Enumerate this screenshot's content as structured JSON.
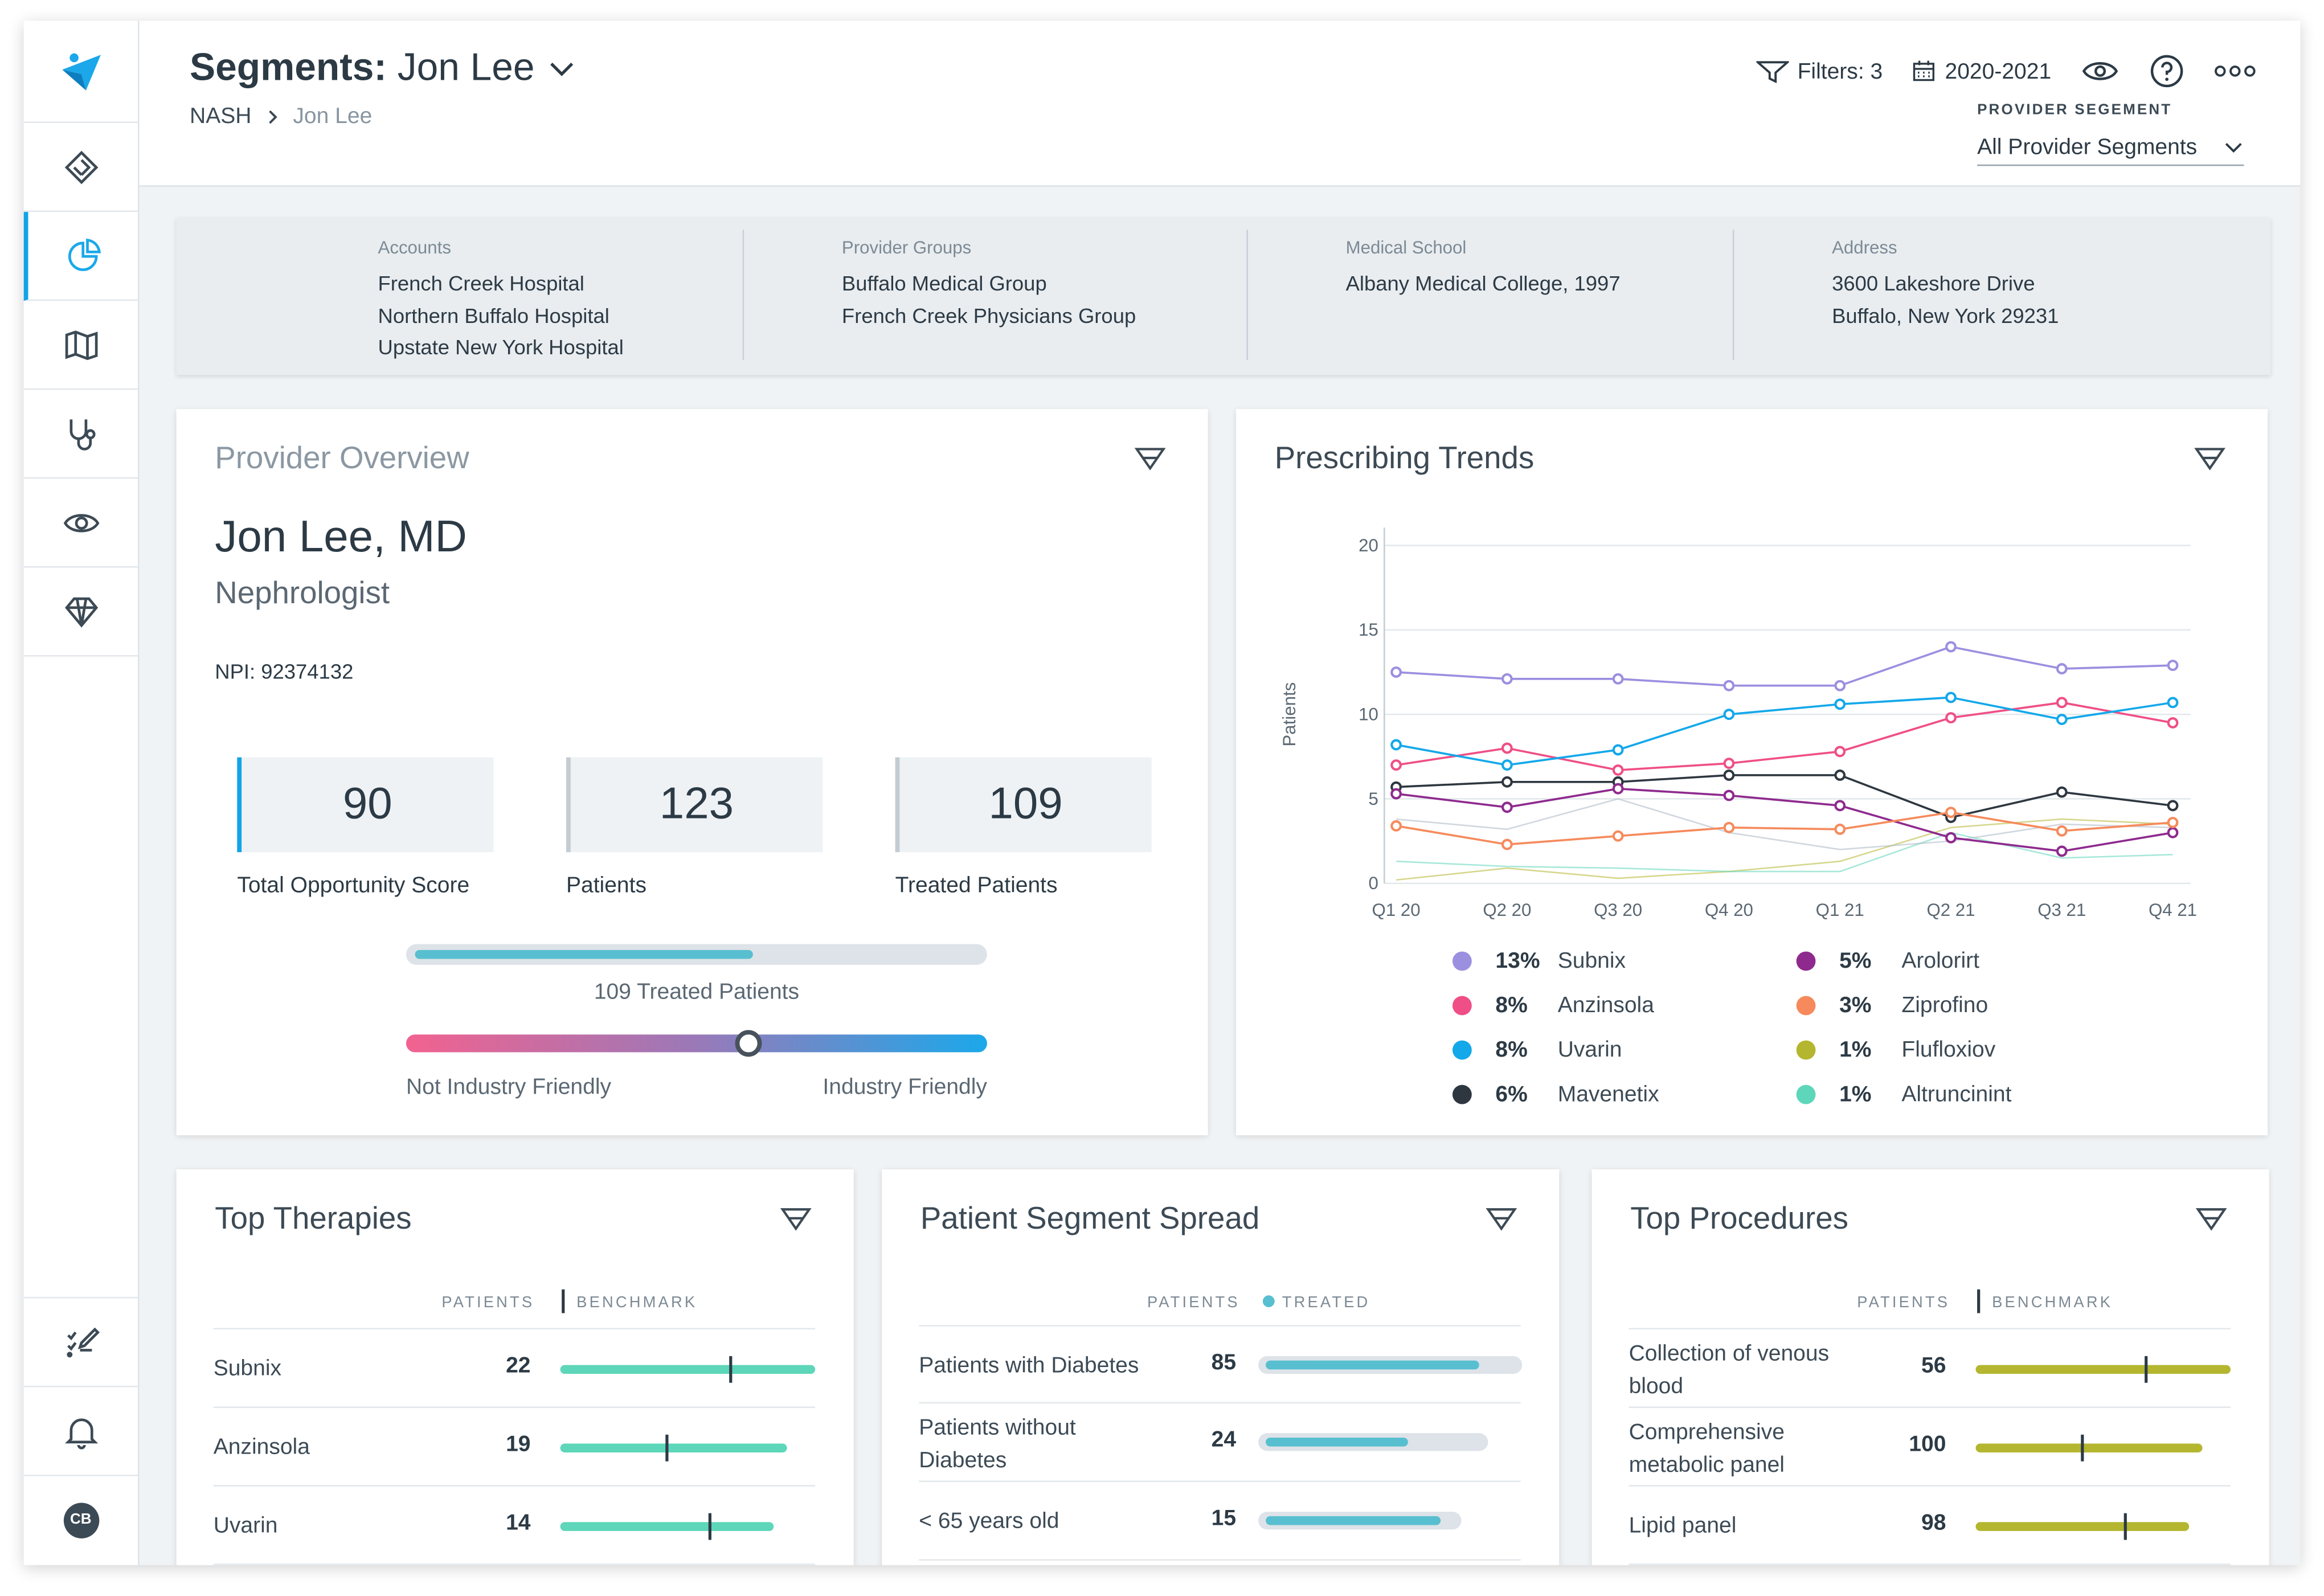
{
  "header": {
    "title_prefix": "Segments:",
    "title_name": "Jon Lee",
    "breadcrumb": [
      "NASH",
      "Jon Lee"
    ],
    "filters_label": "Filters: 3",
    "date_range": "2020-2021",
    "provider_segment_label": "PROVIDER SEGEMENT",
    "provider_segment_value": "All Provider Segments"
  },
  "sidebar": {
    "items": [
      "home-icon",
      "pie-chart-icon",
      "map-icon",
      "stethoscope-icon",
      "eye-icon",
      "diamond-icon"
    ],
    "bottom": [
      "list-edit-icon",
      "bell-icon"
    ],
    "avatar_initials": "CB"
  },
  "info": [
    {
      "label": "Accounts",
      "values": [
        "French Creek Hospital",
        "Northern Buffalo Hospital",
        "Upstate New York Hospital"
      ]
    },
    {
      "label": "Provider Groups",
      "values": [
        "Buffalo Medical Group",
        "French Creek Physicians Group"
      ]
    },
    {
      "label": "Medical School",
      "values": [
        "Albany Medical College, 1997"
      ]
    },
    {
      "label": "Address",
      "values": [
        "3600 Lakeshore Drive",
        "Buffalo, New York 29231"
      ]
    }
  ],
  "overview": {
    "title": "Provider Overview",
    "name": "Jon Lee, MD",
    "specialty": "Nephrologist",
    "npi": "NPI: 92374132",
    "stats": [
      {
        "value": "90",
        "label": "Total Opportunity Score"
      },
      {
        "value": "123",
        "label": "Patients"
      },
      {
        "value": "109",
        "label": "Treated Patients"
      }
    ],
    "treated_progress": 0.6,
    "treated_label": "109 Treated Patients",
    "friendliness": 0.59,
    "scale_left": "Not Industry Friendly",
    "scale_right": "Industry Friendly"
  },
  "trends": {
    "title": "Prescribing Trends",
    "legend": [
      {
        "pct": "13%",
        "name": "Subnix",
        "color": "#9b8fe0"
      },
      {
        "pct": "8%",
        "name": "Anzinsola",
        "color": "#ef4f86"
      },
      {
        "pct": "8%",
        "name": "Uvarin",
        "color": "#13a8ea"
      },
      {
        "pct": "6%",
        "name": "Mavenetix",
        "color": "#2e3740"
      },
      {
        "pct": "5%",
        "name": "Arolorirt",
        "color": "#8e2a8e"
      },
      {
        "pct": "3%",
        "name": "Ziprofino",
        "color": "#f68a5c"
      },
      {
        "pct": "1%",
        "name": "Flufloxiov",
        "color": "#b4b630"
      },
      {
        "pct": "1%",
        "name": "Altruncinint",
        "color": "#5ed6b9"
      }
    ]
  },
  "chart_data": {
    "type": "line",
    "x": [
      "Q1 20",
      "Q2 20",
      "Q3 20",
      "Q4 20",
      "Q1 21",
      "Q2 21",
      "Q3 21",
      "Q4 21"
    ],
    "ylabel": "Patients",
    "yticks": [
      "0",
      "5",
      "10",
      "15",
      "20"
    ],
    "ylim": [
      0,
      20
    ],
    "series": [
      {
        "name": "Subnix",
        "color": "#9b8fe0",
        "markers": true,
        "values": [
          12.5,
          12.1,
          12.1,
          11.7,
          11.7,
          14.0,
          12.7,
          12.9
        ]
      },
      {
        "name": "Anzinsola",
        "color": "#ef4f86",
        "markers": true,
        "values": [
          7.0,
          8.0,
          6.7,
          7.1,
          7.8,
          9.8,
          10.7,
          9.5
        ]
      },
      {
        "name": "Uvarin",
        "color": "#13a8ea",
        "markers": true,
        "values": [
          8.2,
          7.0,
          7.9,
          10.0,
          10.6,
          11.0,
          9.7,
          10.7
        ]
      },
      {
        "name": "Mavenetix",
        "color": "#2e3740",
        "markers": true,
        "values": [
          5.7,
          6.0,
          6.0,
          6.4,
          6.4,
          3.9,
          5.4,
          4.6
        ]
      },
      {
        "name": "Arolorirt",
        "color": "#8e2a8e",
        "markers": true,
        "values": [
          5.3,
          4.5,
          5.6,
          5.2,
          4.6,
          2.7,
          1.9,
          3.0
        ]
      },
      {
        "name": "Ziprofino",
        "color": "#f68a5c",
        "markers": true,
        "values": [
          3.4,
          2.3,
          2.8,
          3.3,
          3.2,
          4.2,
          3.1,
          3.6
        ]
      },
      {
        "name": "Flufloxiov",
        "color": "#b4b630",
        "markers": false,
        "values": [
          0.2,
          0.9,
          0.3,
          0.7,
          1.3,
          3.3,
          3.8,
          3.5
        ]
      },
      {
        "name": "Altruncinint",
        "color": "#5ed6b9",
        "markers": false,
        "values": [
          1.3,
          1.0,
          0.9,
          0.7,
          0.7,
          3.0,
          1.5,
          1.7
        ]
      },
      {
        "name": "",
        "color": "#a9b7c3",
        "markers": false,
        "values": [
          3.8,
          3.2,
          5.0,
          3.0,
          2.0,
          2.5,
          3.5,
          3.3
        ]
      }
    ]
  },
  "therapies": {
    "title": "Top Therapies",
    "col_patients": "PATIENTS",
    "col_benchmark": "BENCHMARK",
    "color": "#5ed6b9",
    "rows": [
      {
        "name": "Subnix",
        "value": "22",
        "bar": 1.0,
        "bench": 0.66
      },
      {
        "name": "Anzinsola",
        "value": "19",
        "bar": 0.89,
        "bench": 0.41
      },
      {
        "name": "Uvarin",
        "value": "14",
        "bar": 0.84,
        "bench": 0.58
      }
    ]
  },
  "segments": {
    "title": "Patient Segment Spread",
    "col_patients": "PATIENTS",
    "col_treated": "TREATED",
    "rows": [
      {
        "name": "Patients with Diabetes",
        "value": "85",
        "bar": 1.0,
        "fill": 0.86
      },
      {
        "name": "Patients without Diabetes",
        "value": "24",
        "bar": 0.87,
        "fill": 0.66
      },
      {
        "name": "< 65 years old",
        "value": "15",
        "bar": 0.77,
        "fill": 0.93
      }
    ]
  },
  "procedures": {
    "title": "Top Procedures",
    "col_patients": "PATIENTS",
    "col_benchmark": "BENCHMARK",
    "color": "#b4b630",
    "rows": [
      {
        "name": "Collection of venous blood",
        "value": "56",
        "bar": 1.0,
        "bench": 0.66
      },
      {
        "name": "Comprehensive metabolic panel",
        "value": "100",
        "bar": 0.89,
        "bench": 0.41
      },
      {
        "name": "Lipid panel",
        "value": "98",
        "bar": 0.84,
        "bench": 0.58
      }
    ]
  }
}
